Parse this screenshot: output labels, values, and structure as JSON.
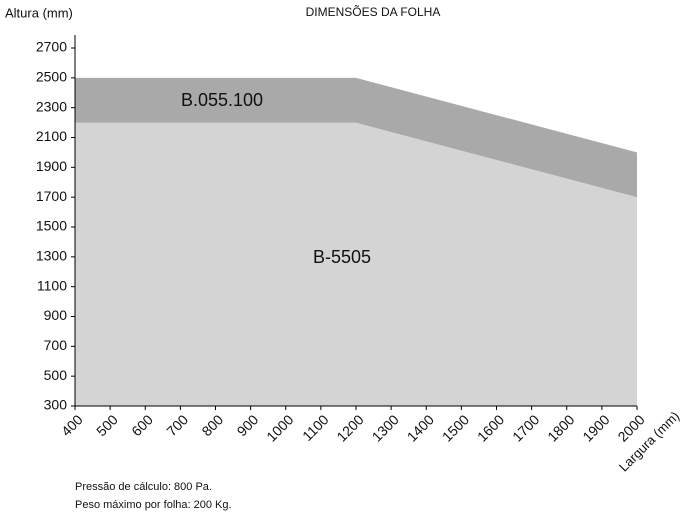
{
  "chart_data": {
    "type": "area",
    "title": "DIMENSÕES DA FOLHA",
    "y_label": "Altura (mm)",
    "x_label": "Largura (mm)",
    "notes": [
      "Pressão de cálculo: 800 Pa.",
      "Peso máximo por folha: 200 Kg."
    ],
    "x": [
      400,
      1200,
      2000
    ],
    "series": [
      {
        "name": "B.055.100",
        "color": "#a9a9a9",
        "values": [
          2500,
          2500,
          2000
        ]
      },
      {
        "name": "B-5505",
        "color": "#d4d4d4",
        "values": [
          2200,
          2200,
          1700
        ]
      }
    ],
    "xlim": [
      400,
      2000
    ],
    "xticks": [
      400,
      500,
      600,
      700,
      800,
      900,
      1000,
      1100,
      1200,
      1300,
      1400,
      1500,
      1600,
      1700,
      1800,
      1900,
      2000
    ],
    "ylim": [
      300,
      2700
    ],
    "yticks": [
      300,
      500,
      700,
      900,
      1100,
      1300,
      1500,
      1700,
      1900,
      2100,
      2300,
      2500,
      2700
    ]
  }
}
